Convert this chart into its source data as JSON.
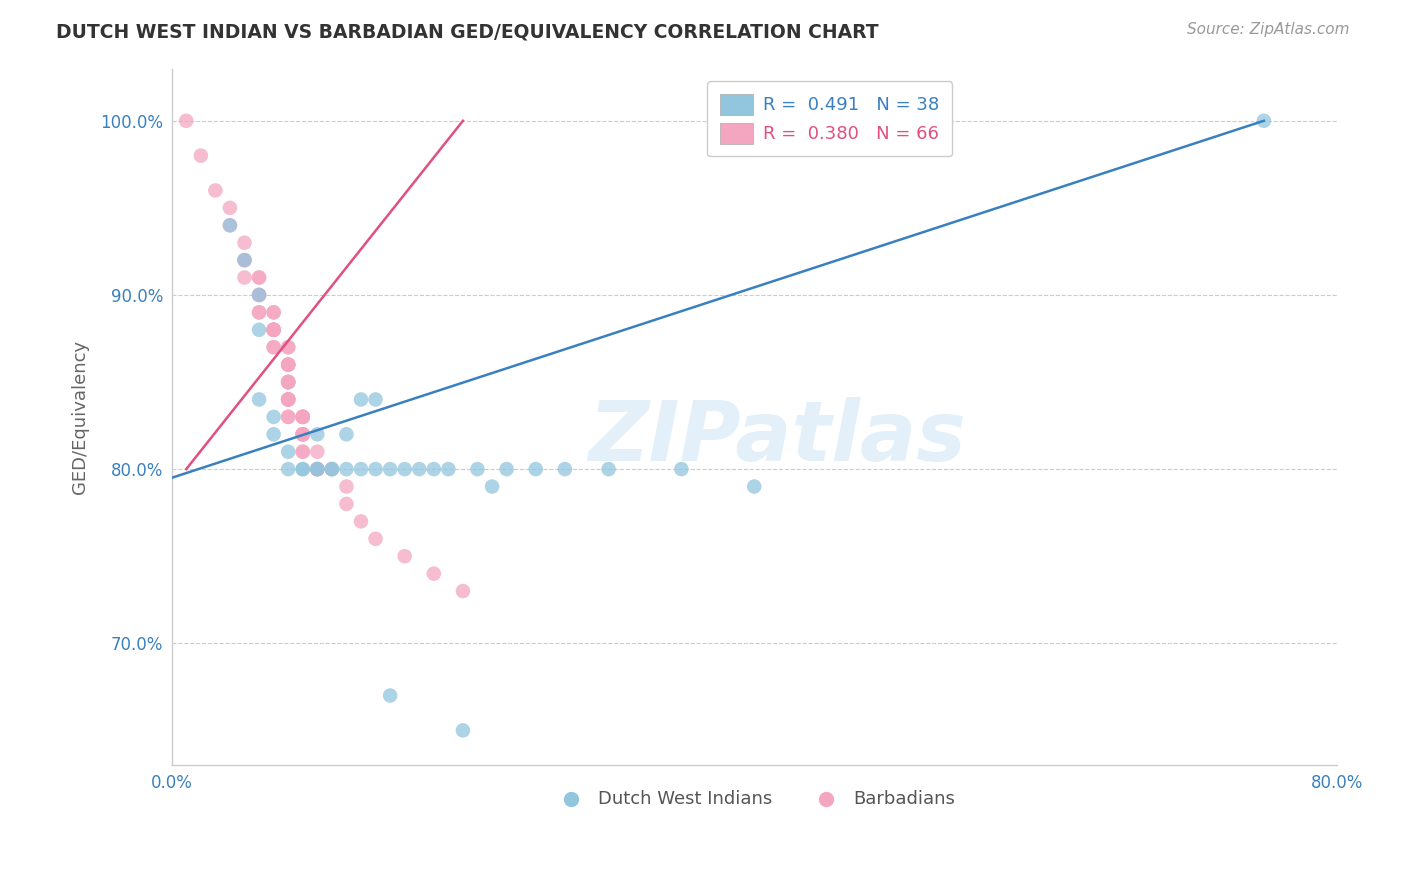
{
  "title": "DUTCH WEST INDIAN VS BARBADIAN GED/EQUIVALENCY CORRELATION CHART",
  "source": "Source: ZipAtlas.com",
  "ylabel": "GED/Equivalency",
  "xlim": [
    0.0,
    0.8
  ],
  "ylim": [
    0.63,
    1.03
  ],
  "xtick_positions": [
    0.0,
    0.2,
    0.4,
    0.6,
    0.8
  ],
  "xtick_labels": [
    "0.0%",
    "",
    "",
    "",
    "80.0%"
  ],
  "ytick_positions": [
    0.7,
    0.8,
    0.9,
    1.0
  ],
  "ytick_labels": [
    "70.0%",
    "80.0%",
    "90.0%",
    "100.0%"
  ],
  "legend_line1": "R =  0.491   N = 38",
  "legend_line2": "R =  0.380   N = 66",
  "blue_color": "#92c5de",
  "pink_color": "#f4a6c0",
  "blue_line_color": "#3a80c0",
  "pink_line_color": "#e05080",
  "watermark_text": "ZIPatlas",
  "blue_scatter_x": [
    0.04,
    0.05,
    0.06,
    0.06,
    0.06,
    0.07,
    0.07,
    0.08,
    0.08,
    0.09,
    0.09,
    0.1,
    0.1,
    0.1,
    0.11,
    0.11,
    0.12,
    0.12,
    0.13,
    0.13,
    0.14,
    0.14,
    0.15,
    0.16,
    0.17,
    0.18,
    0.19,
    0.21,
    0.22,
    0.23,
    0.25,
    0.27,
    0.3,
    0.35,
    0.75,
    0.15,
    0.2,
    0.4
  ],
  "blue_scatter_y": [
    0.94,
    0.92,
    0.9,
    0.88,
    0.84,
    0.83,
    0.82,
    0.81,
    0.8,
    0.8,
    0.8,
    0.8,
    0.8,
    0.82,
    0.8,
    0.8,
    0.82,
    0.8,
    0.84,
    0.8,
    0.84,
    0.8,
    0.8,
    0.8,
    0.8,
    0.8,
    0.8,
    0.8,
    0.79,
    0.8,
    0.8,
    0.8,
    0.8,
    0.8,
    1.0,
    0.67,
    0.65,
    0.79
  ],
  "pink_scatter_x": [
    0.01,
    0.02,
    0.03,
    0.04,
    0.04,
    0.05,
    0.05,
    0.05,
    0.05,
    0.06,
    0.06,
    0.06,
    0.06,
    0.06,
    0.06,
    0.07,
    0.07,
    0.07,
    0.07,
    0.07,
    0.07,
    0.07,
    0.07,
    0.07,
    0.08,
    0.08,
    0.08,
    0.08,
    0.08,
    0.08,
    0.08,
    0.08,
    0.08,
    0.08,
    0.08,
    0.08,
    0.08,
    0.08,
    0.08,
    0.08,
    0.08,
    0.08,
    0.09,
    0.09,
    0.09,
    0.09,
    0.09,
    0.09,
    0.09,
    0.09,
    0.09,
    0.09,
    0.09,
    0.09,
    0.1,
    0.1,
    0.1,
    0.1,
    0.11,
    0.12,
    0.12,
    0.13,
    0.14,
    0.16,
    0.18,
    0.2
  ],
  "pink_scatter_y": [
    1.0,
    0.98,
    0.96,
    0.95,
    0.94,
    0.93,
    0.92,
    0.92,
    0.91,
    0.91,
    0.91,
    0.9,
    0.9,
    0.89,
    0.89,
    0.89,
    0.89,
    0.88,
    0.88,
    0.88,
    0.88,
    0.88,
    0.87,
    0.87,
    0.87,
    0.87,
    0.86,
    0.86,
    0.86,
    0.86,
    0.85,
    0.85,
    0.85,
    0.85,
    0.85,
    0.84,
    0.84,
    0.84,
    0.84,
    0.84,
    0.83,
    0.83,
    0.83,
    0.83,
    0.83,
    0.83,
    0.83,
    0.82,
    0.82,
    0.82,
    0.82,
    0.82,
    0.81,
    0.81,
    0.81,
    0.8,
    0.8,
    0.8,
    0.8,
    0.79,
    0.78,
    0.77,
    0.76,
    0.75,
    0.74,
    0.73
  ],
  "blue_line_x": [
    0.0,
    0.75
  ],
  "blue_line_y": [
    0.795,
    1.0
  ],
  "pink_line_x": [
    0.01,
    0.2
  ],
  "pink_line_y": [
    0.8,
    1.0
  ]
}
